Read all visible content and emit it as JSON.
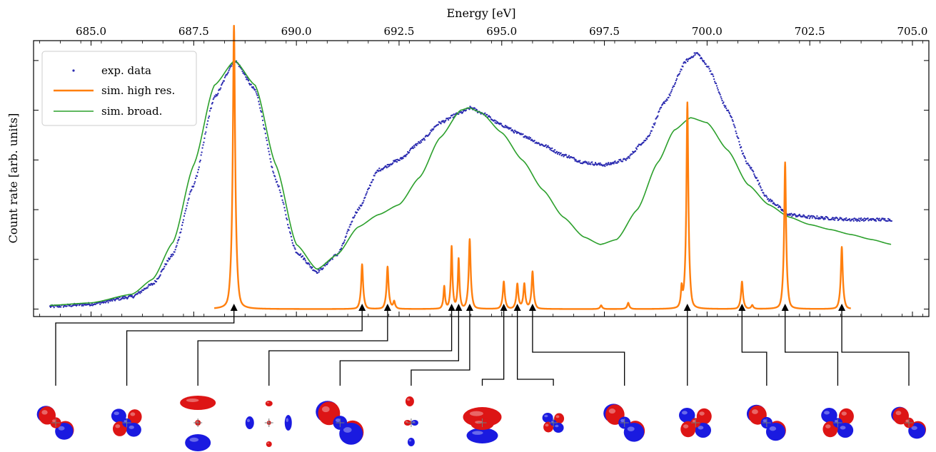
{
  "chart_data": {
    "type": "line",
    "xlabel": "Energy [eV]",
    "ylabel": "Count rate [arb. units]",
    "xlim": [
      683.6,
      705.4
    ],
    "ylim": [
      -0.03,
      1.08
    ],
    "x_ticks": [
      685.0,
      687.5,
      690.0,
      692.5,
      695.0,
      697.5,
      700.0,
      702.5,
      705.0
    ],
    "x_tick_labels": [
      "685.0",
      "687.5",
      "690.0",
      "692.5",
      "695.0",
      "697.5",
      "700.0",
      "702.5",
      "705.0"
    ],
    "x_axis_position": "top",
    "y_ticks": [
      0.0,
      0.2,
      0.4,
      0.6,
      0.8,
      1.0
    ],
    "y_tick_labels_shown": false,
    "grid": false,
    "legend_position": "top-left",
    "series": [
      {
        "name": "exp. data",
        "style": "dots",
        "color": "#2b2bb0",
        "x": [
          684.0,
          685.0,
          686.0,
          686.5,
          687.0,
          687.5,
          688.0,
          688.5,
          689.0,
          689.5,
          690.0,
          690.5,
          691.0,
          691.5,
          692.0,
          692.5,
          693.0,
          693.5,
          694.0,
          694.25,
          694.5,
          695.0,
          695.5,
          696.0,
          696.5,
          697.0,
          697.5,
          698.0,
          698.5,
          699.0,
          699.5,
          699.75,
          700.0,
          700.5,
          701.0,
          701.5,
          702.0,
          702.5,
          703.0,
          703.5,
          704.0,
          704.5
        ],
        "y": [
          0.01,
          0.02,
          0.05,
          0.1,
          0.22,
          0.5,
          0.85,
          1.0,
          0.88,
          0.52,
          0.23,
          0.15,
          0.22,
          0.4,
          0.56,
          0.6,
          0.67,
          0.75,
          0.79,
          0.81,
          0.79,
          0.74,
          0.7,
          0.66,
          0.62,
          0.59,
          0.58,
          0.6,
          0.68,
          0.84,
          1.0,
          1.03,
          0.98,
          0.8,
          0.58,
          0.44,
          0.38,
          0.37,
          0.365,
          0.36,
          0.36,
          0.36
        ]
      },
      {
        "name": "sim. high res.",
        "style": "line",
        "color": "#ff7f0e",
        "peaks": [
          {
            "x": 688.48,
            "height": 1.14,
            "width": 0.06
          },
          {
            "x": 691.6,
            "height": 0.18,
            "width": 0.05
          },
          {
            "x": 692.22,
            "height": 0.17,
            "width": 0.05
          },
          {
            "x": 692.38,
            "height": 0.03,
            "width": 0.05
          },
          {
            "x": 693.6,
            "height": 0.09,
            "width": 0.04
          },
          {
            "x": 693.78,
            "height": 0.25,
            "width": 0.04
          },
          {
            "x": 693.95,
            "height": 0.2,
            "width": 0.04
          },
          {
            "x": 694.22,
            "height": 0.28,
            "width": 0.05
          },
          {
            "x": 695.05,
            "height": 0.11,
            "width": 0.05
          },
          {
            "x": 695.38,
            "height": 0.1,
            "width": 0.05
          },
          {
            "x": 695.55,
            "height": 0.1,
            "width": 0.05
          },
          {
            "x": 695.75,
            "height": 0.15,
            "width": 0.05
          },
          {
            "x": 697.42,
            "height": 0.015,
            "width": 0.05
          },
          {
            "x": 698.08,
            "height": 0.025,
            "width": 0.05
          },
          {
            "x": 699.38,
            "height": 0.08,
            "width": 0.04
          },
          {
            "x": 699.52,
            "height": 0.83,
            "width": 0.05
          },
          {
            "x": 700.85,
            "height": 0.11,
            "width": 0.05
          },
          {
            "x": 701.1,
            "height": 0.015,
            "width": 0.05
          },
          {
            "x": 701.9,
            "height": 0.59,
            "width": 0.05
          },
          {
            "x": 703.28,
            "height": 0.25,
            "width": 0.05
          }
        ],
        "x_range": [
          688.0,
          703.5
        ]
      },
      {
        "name": "sim. broad.",
        "style": "line",
        "color": "#2ca02c",
        "x": [
          684.0,
          685.0,
          686.0,
          686.5,
          687.0,
          687.5,
          688.0,
          688.5,
          689.0,
          689.5,
          690.0,
          690.5,
          691.0,
          691.5,
          692.0,
          692.5,
          693.0,
          693.5,
          694.0,
          694.2,
          694.5,
          695.0,
          695.5,
          696.0,
          696.5,
          697.0,
          697.4,
          697.8,
          698.3,
          698.8,
          699.2,
          699.6,
          700.0,
          700.5,
          701.0,
          701.5,
          702.0,
          702.5,
          703.0,
          703.5,
          704.0,
          704.5
        ],
        "y": [
          0.015,
          0.025,
          0.06,
          0.12,
          0.27,
          0.58,
          0.9,
          1.0,
          0.9,
          0.58,
          0.26,
          0.16,
          0.22,
          0.33,
          0.38,
          0.42,
          0.53,
          0.69,
          0.8,
          0.81,
          0.79,
          0.71,
          0.6,
          0.48,
          0.37,
          0.29,
          0.26,
          0.28,
          0.4,
          0.59,
          0.72,
          0.77,
          0.75,
          0.64,
          0.5,
          0.42,
          0.37,
          0.34,
          0.32,
          0.3,
          0.28,
          0.26
        ]
      }
    ],
    "orbital_annotations": [
      {
        "peak_x": 688.48,
        "orbital": "orbital-1"
      },
      {
        "peak_x": 691.6,
        "orbital": "orbital-2"
      },
      {
        "peak_x": 692.22,
        "orbital": "orbital-3"
      },
      {
        "peak_x": 693.78,
        "orbital": "orbital-4"
      },
      {
        "peak_x": 693.95,
        "orbital": "orbital-5"
      },
      {
        "peak_x": 694.22,
        "orbital": "orbital-6"
      },
      {
        "peak_x": 695.05,
        "orbital": "orbital-7"
      },
      {
        "peak_x": 695.38,
        "orbital": "orbital-8"
      },
      {
        "peak_x": 695.75,
        "orbital": "orbital-9"
      },
      {
        "peak_x": 699.52,
        "orbital": "orbital-10"
      },
      {
        "peak_x": 700.85,
        "orbital": "orbital-11"
      },
      {
        "peak_x": 701.9,
        "orbital": "orbital-12"
      },
      {
        "peak_x": 703.28,
        "orbital": "orbital-13"
      }
    ],
    "orbital_colors": {
      "positive": "#dd1515",
      "negative": "#1a1ae0"
    }
  }
}
